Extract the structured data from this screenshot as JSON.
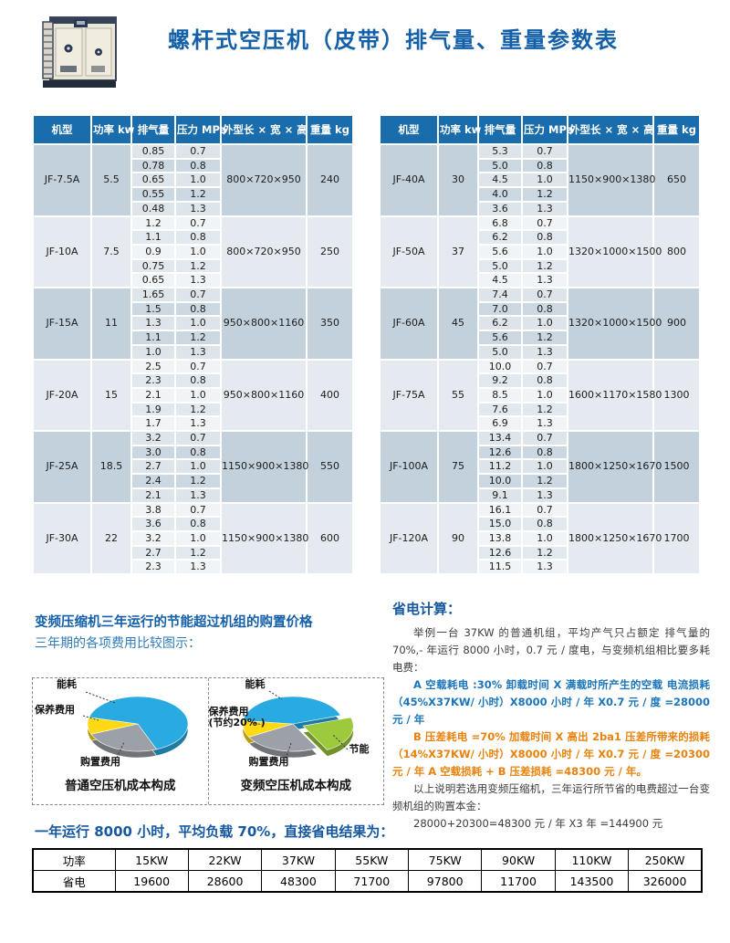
{
  "page": {
    "title": "螺杆式空压机（皮带）排气量、重量参数表"
  },
  "spec_table": {
    "headers": [
      "机型",
      "功率 kw",
      "排气量",
      "压力 MPa",
      "外型长 × 宽 × 高",
      "重量 kg"
    ],
    "left_groups": [
      {
        "model": "JF-7.5A",
        "power": "5.5",
        "dims": "800×720×950",
        "weight": "240",
        "rows": [
          [
            "0.85",
            "0.7"
          ],
          [
            "0.78",
            "0.8"
          ],
          [
            "0.65",
            "1.0"
          ],
          [
            "0.55",
            "1.2"
          ],
          [
            "0.48",
            "1.3"
          ]
        ]
      },
      {
        "model": "JF-10A",
        "power": "7.5",
        "dims": "800×720×950",
        "weight": "250",
        "rows": [
          [
            "1.2",
            "0.7"
          ],
          [
            "1.1",
            "0.8"
          ],
          [
            "0.9",
            "1.0"
          ],
          [
            "0.75",
            "1.2"
          ],
          [
            "0.65",
            "1.3"
          ]
        ]
      },
      {
        "model": "JF-15A",
        "power": "11",
        "dims": "950×800×1160",
        "weight": "350",
        "rows": [
          [
            "1.65",
            "0.7"
          ],
          [
            "1.5",
            "0.8"
          ],
          [
            "1.3",
            "1.0"
          ],
          [
            "1.1",
            "1.2"
          ],
          [
            "1.0",
            "1.3"
          ]
        ]
      },
      {
        "model": "JF-20A",
        "power": "15",
        "dims": "950×800×1160",
        "weight": "400",
        "rows": [
          [
            "2.5",
            "0.7"
          ],
          [
            "2.3",
            "0.8"
          ],
          [
            "2.1",
            "1.0"
          ],
          [
            "1.9",
            "1.2"
          ],
          [
            "1.7",
            "1.3"
          ]
        ]
      },
      {
        "model": "JF-25A",
        "power": "18.5",
        "dims": "1150×900×1380",
        "weight": "550",
        "rows": [
          [
            "3.2",
            "0.7"
          ],
          [
            "3.0",
            "0.8"
          ],
          [
            "2.7",
            "1.0"
          ],
          [
            "2.4",
            "1.2"
          ],
          [
            "2.1",
            "1.3"
          ]
        ]
      },
      {
        "model": "JF-30A",
        "power": "22",
        "dims": "1150×900×1380",
        "weight": "600",
        "rows": [
          [
            "3.8",
            "0.7"
          ],
          [
            "3.6",
            "0.8"
          ],
          [
            "3.2",
            "1.0"
          ],
          [
            "2.7",
            "1.2"
          ],
          [
            "2.3",
            "1.3"
          ]
        ]
      }
    ],
    "right_groups": [
      {
        "model": "JF-40A",
        "power": "30",
        "dims": "1150×900×1380",
        "weight": "650",
        "rows": [
          [
            "5.3",
            "0.7"
          ],
          [
            "5.0",
            "0.8"
          ],
          [
            "4.5",
            "1.0"
          ],
          [
            "4.0",
            "1.2"
          ],
          [
            "3.6",
            "1.3"
          ]
        ]
      },
      {
        "model": "JF-50A",
        "power": "37",
        "dims": "1320×1000×1500",
        "weight": "800",
        "rows": [
          [
            "6.8",
            "0.7"
          ],
          [
            "6.2",
            "0.8"
          ],
          [
            "5.6",
            "1.0"
          ],
          [
            "5.0",
            "1.2"
          ],
          [
            "4.5",
            "1.3"
          ]
        ]
      },
      {
        "model": "JF-60A",
        "power": "45",
        "dims": "1320×1000×1500",
        "weight": "900",
        "rows": [
          [
            "7.4",
            "0.7"
          ],
          [
            "7.0",
            "0.8"
          ],
          [
            "6.2",
            "1.0"
          ],
          [
            "5.6",
            "1.2"
          ],
          [
            "5.0",
            "1.3"
          ]
        ]
      },
      {
        "model": "JF-75A",
        "power": "55",
        "dims": "1600×1170×1580",
        "weight": "1300",
        "rows": [
          [
            "10.0",
            "0.7"
          ],
          [
            "9.2",
            "0.8"
          ],
          [
            "8.5",
            "1.0"
          ],
          [
            "7.6",
            "1.2"
          ],
          [
            "6.9",
            "1.3"
          ]
        ]
      },
      {
        "model": "JF-100A",
        "power": "75",
        "dims": "1800×1250×1670",
        "weight": "1500",
        "rows": [
          [
            "13.4",
            "0.7"
          ],
          [
            "12.6",
            "0.8"
          ],
          [
            "11.2",
            "1.0"
          ],
          [
            "10.0",
            "1.2"
          ],
          [
            "9.1",
            "1.3"
          ]
        ]
      },
      {
        "model": "JF-120A",
        "power": "90",
        "dims": "1800×1250×1670",
        "weight": "1700",
        "rows": [
          [
            "16.1",
            "0.7"
          ],
          [
            "15.0",
            "0.8"
          ],
          [
            "13.8",
            "1.0"
          ],
          [
            "12.6",
            "1.2"
          ],
          [
            "11.5",
            "1.3"
          ]
        ]
      }
    ]
  },
  "savings_section": {
    "title": "变频压缩机三年运行的节能超过机组的购置价格",
    "subtitle": "三年期的各项费用比较图示："
  },
  "chart_data": [
    {
      "type": "pie",
      "title": "普通空压机成本构成",
      "start_angle": 68,
      "slices": [
        {
          "label": "购置费用",
          "pct": 25,
          "color": "#9BA1A6"
        },
        {
          "label": "保养费用",
          "pct": 10,
          "color": "#FFD914"
        },
        {
          "label": "能耗",
          "pct": 65,
          "color": "#29ABE2"
        }
      ],
      "labels": [
        "能耗",
        "保养费用",
        "购置费用"
      ]
    },
    {
      "type": "pie",
      "title": "变频空压机成本构成",
      "start_angle": -18,
      "slices": [
        {
          "label": "节能",
          "pct": 22,
          "color": "#9DC93C",
          "explode": 12
        },
        {
          "label": "购置费用",
          "pct": 25,
          "color": "#9BA1A6"
        },
        {
          "label": "保养费用(节约20%)",
          "pct": 10,
          "color": "#FFD914"
        },
        {
          "label": "能耗",
          "pct": 43,
          "color": "#29ABE2"
        }
      ],
      "labels": [
        "能耗",
        "保养费用\n(节约20% )",
        "购置费用",
        "节能"
      ]
    }
  ],
  "calc_section": {
    "heading": "省电计算：",
    "para1": "举例一台 37KW 的普通机组，平均产气只占额定 排气量的 70%,- 年运行 8000 小时，0.7 元 / 度电，与变频机组相比要多耗电费：",
    "para_a": "A 空载耗电 :30% 卸载时间 X 满载时所产生的空载 电流损耗（45%X37KW/ 小时）X8000 小时 / 年 X0.7 元 / 度 =28000 元 / 年",
    "para_b": "B 压差耗电 =70% 加载时间 X 高出 2ba1 压差所带来的损耗（14%X37KW/ 小时）X8000 小时 / 年 X0.7 元 / 度 =20300 元 / 年 A 空载损耗 + B 压差损耗 =48300 元 / 年。",
    "para2": "以上说明若选用变频压缩机，三年运行所节省的电费超过一台变频机组的购置本金：",
    "para3": "28000+20300=48300 元 / 年 X3 年 =144900 元"
  },
  "result_section": {
    "title": "一年运行 8000 小时，平均负载 70%，直接省电结果为：",
    "table": {
      "row1_label": "功率",
      "row2_label": "省电",
      "powers": [
        "15KW",
        "22KW",
        "37KW",
        "55KW",
        "75KW",
        "90KW",
        "110KW",
        "250KW"
      ],
      "savings": [
        "19600",
        "28600",
        "48300",
        "71700",
        "97800",
        "11700",
        "143500",
        "326000"
      ]
    }
  },
  "colors": {
    "title_blue": "#1460a8",
    "table_header_blue": "#1a6dac",
    "band_dark": "#c2d1dc",
    "band_light": "#e4eaef",
    "accent_orange": "#e8820c",
    "accent_blue": "#1b75bb",
    "pie_blue": "#29ABE2",
    "pie_yellow": "#FFD914",
    "pie_gray": "#9BA1A6",
    "pie_green": "#9DC93C"
  }
}
